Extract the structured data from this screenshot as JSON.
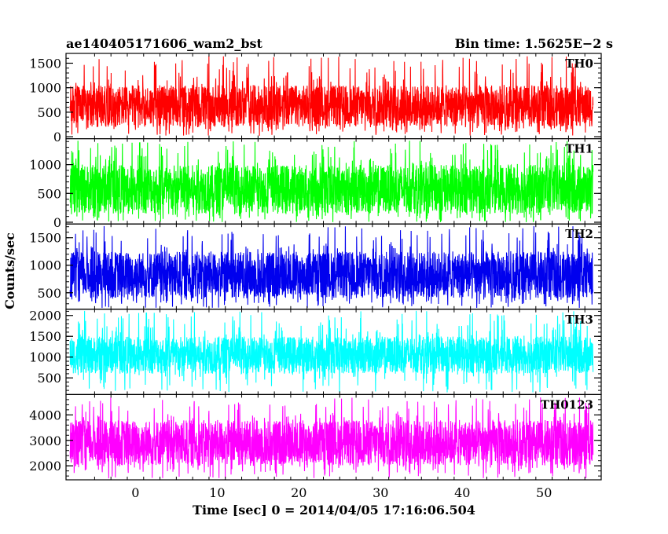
{
  "chart_data": {
    "type": "line",
    "title_left": "ae140405171606_wam2_bst",
    "title_right": "Bin time: 1.5625E−2 s",
    "xlabel": "Time [sec] 0 = 2014/04/05 17:16:06.504",
    "ylabel": "Counts/sec",
    "xlim": [
      -8.5,
      57
    ],
    "data_x_range": [
      -8,
      56
    ],
    "x_ticks": [
      0,
      10,
      20,
      30,
      40,
      50
    ],
    "x_tick_labels": [
      "0",
      "10",
      "20",
      "30",
      "40",
      "50"
    ],
    "grid": false,
    "legend": "none",
    "panels": [
      {
        "name": "TH0",
        "color": "#ff0000",
        "ylim": [
          -40,
          1700
        ],
        "y_ticks": [
          0,
          500,
          1000,
          1500
        ],
        "y_tick_labels": [
          "0",
          "500",
          "1000",
          "1500"
        ],
        "typical_low": 200,
        "typical_high": 1050,
        "min": 20,
        "max": 1650
      },
      {
        "name": "TH1",
        "color": "#00ff00",
        "ylim": [
          -30,
          1450
        ],
        "y_ticks": [
          0,
          500,
          1000
        ],
        "y_tick_labels": [
          "0",
          "500",
          "1000"
        ],
        "typical_low": 150,
        "typical_high": 1000,
        "min": 0,
        "max": 1420
      },
      {
        "name": "TH2",
        "color": "#0000ee",
        "ylim": [
          200,
          1750
        ],
        "y_ticks": [
          500,
          1000,
          1500
        ],
        "y_tick_labels": [
          "500",
          "1000",
          "1500"
        ],
        "typical_low": 400,
        "typical_high": 1250,
        "min": 220,
        "max": 1720
      },
      {
        "name": "TH3",
        "color": "#00ffff",
        "ylim": [
          100,
          2150
        ],
        "y_ticks": [
          500,
          1000,
          1500,
          2000
        ],
        "y_tick_labels": [
          "500",
          "1000",
          "1500",
          "2000"
        ],
        "typical_low": 600,
        "typical_high": 1500,
        "min": 150,
        "max": 2120
      },
      {
        "name": "TH0123",
        "color": "#ff00ff",
        "ylim": [
          1450,
          4800
        ],
        "y_ticks": [
          2000,
          3000,
          4000
        ],
        "y_tick_labels": [
          "2000",
          "3000",
          "4000"
        ],
        "typical_low": 2000,
        "typical_high": 3800,
        "min": 1500,
        "max": 4700
      }
    ]
  }
}
